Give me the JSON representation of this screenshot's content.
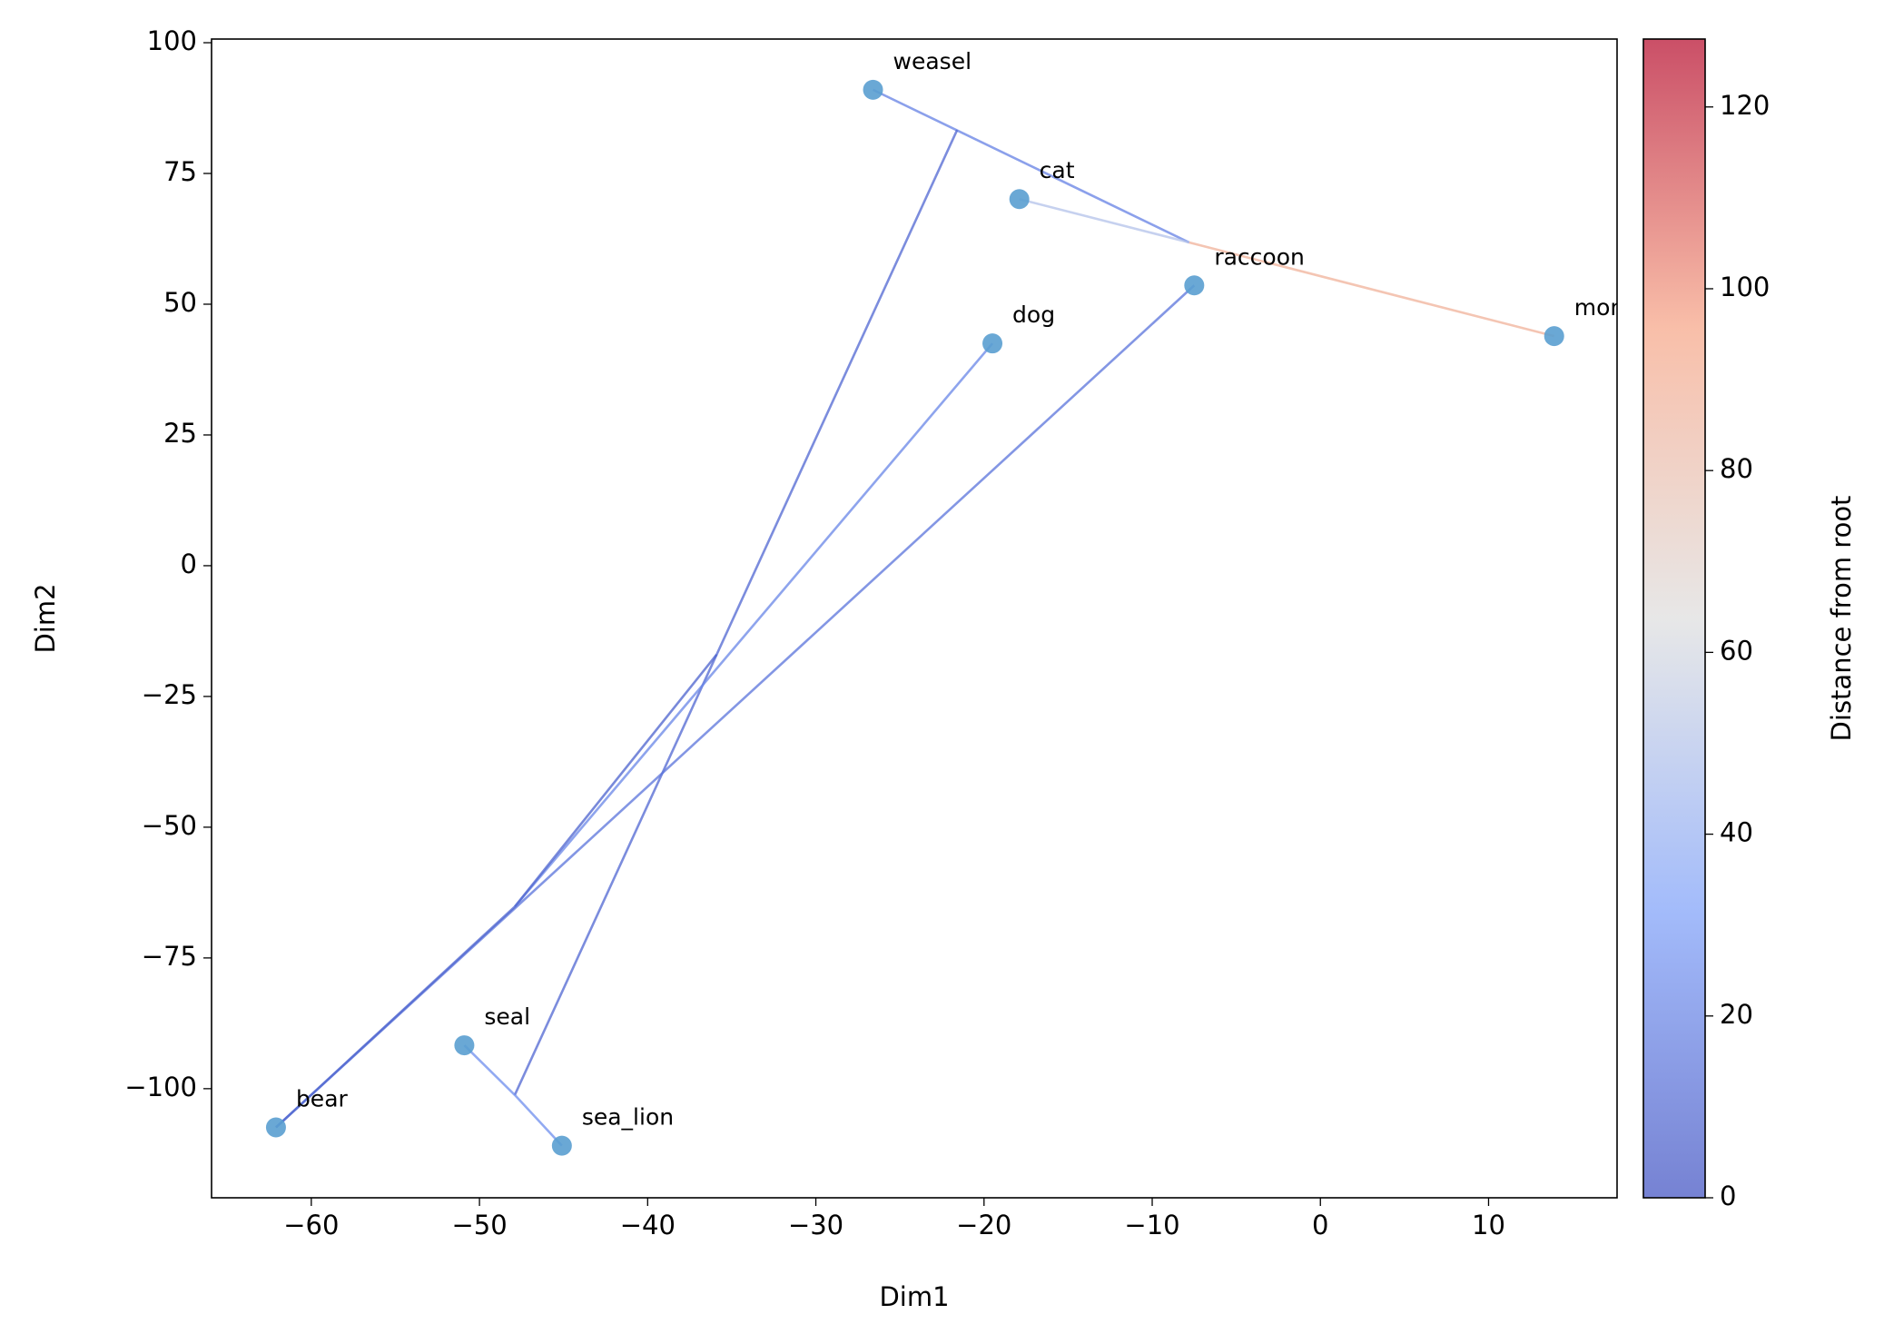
{
  "chart_data": {
    "type": "tree-scatter",
    "xlabel": "Dim1",
    "ylabel": "Dim2",
    "xlim": [
      -65.93,
      17.64
    ],
    "ylim": [
      -120.86,
      100.7
    ],
    "xticks": [
      {
        "value": -60,
        "label": "−60"
      },
      {
        "value": -50,
        "label": "−50"
      },
      {
        "value": -40,
        "label": "−40"
      },
      {
        "value": -30,
        "label": "−30"
      },
      {
        "value": -20,
        "label": "−20"
      },
      {
        "value": -10,
        "label": "−10"
      },
      0,
      10
    ],
    "yticks": [
      {
        "value": -100,
        "label": "−100"
      },
      {
        "value": -75,
        "label": "−75"
      },
      {
        "value": -50,
        "label": "−50"
      },
      {
        "value": -25,
        "label": "−25"
      },
      0,
      25,
      50,
      75,
      100
    ],
    "point_color": "#5a9fd0",
    "points": {
      "labels": [
        "weasel",
        "cat",
        "raccoon",
        "monkey",
        "dog",
        "seal",
        "sea_lion",
        "bear"
      ],
      "x": [
        -26.6,
        -17.9,
        -7.5,
        13.9,
        -19.5,
        -50.9,
        -45.1,
        -62.1
      ],
      "y": [
        91.0,
        70.1,
        53.6,
        43.9,
        42.5,
        -91.7,
        -110.9,
        -107.4
      ]
    },
    "edges": [
      {
        "x": [
          -26.6,
          -7.8
        ],
        "y": [
          91.0,
          61.8
        ],
        "distance": 20
      },
      {
        "x": [
          -21.6,
          -47.9
        ],
        "y": [
          83.3,
          -101.2
        ],
        "distance": 10
      },
      {
        "x": [
          -17.9,
          -7.8
        ],
        "y": [
          70.1,
          61.8
        ],
        "distance": 50
      },
      {
        "x": [
          13.9,
          -7.8
        ],
        "y": [
          43.9,
          61.8
        ],
        "distance": 88
      },
      {
        "x": [
          -7.5,
          -62.1
        ],
        "y": [
          53.6,
          -107.4
        ],
        "distance": 15
      },
      {
        "x": [
          -19.5,
          -47.9
        ],
        "y": [
          42.5,
          -65.2
        ],
        "distance": 22
      },
      {
        "x": [
          -35.9,
          -47.9
        ],
        "y": [
          -17.0,
          -65.2
        ],
        "distance": 8
      },
      {
        "x": [
          -47.9,
          -62.1
        ],
        "y": [
          -65.2,
          -107.4
        ],
        "distance": 8
      },
      {
        "x": [
          -50.9,
          -47.9
        ],
        "y": [
          -91.7,
          -101.2
        ],
        "distance": 25
      },
      {
        "x": [
          -45.1,
          -47.9
        ],
        "y": [
          -110.9,
          -101.2
        ],
        "distance": 25
      }
    ],
    "colorbar": {
      "label": "Distance from root",
      "colormap": "coolwarm",
      "lim": [
        0,
        127.47
      ],
      "ticks": [
        0,
        20,
        40,
        60,
        80,
        100,
        120
      ]
    }
  }
}
